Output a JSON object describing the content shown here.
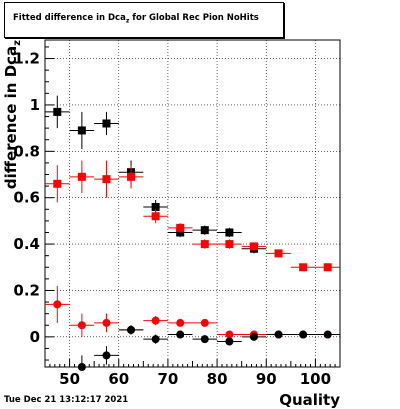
{
  "title": {
    "main": "Fitted difference in Dca",
    "sub": "z",
    "rest": " for Global Rec Pion NoHits"
  },
  "footer": "Tue Dec 21 13:12:17 2021",
  "chart_data": {
    "type": "scatter",
    "title": "Fitted difference in Dcaz for Global Rec Pion NoHits",
    "xlabel": "Quality",
    "ylabel": "difference in Dcaz",
    "xlim": [
      45,
      105
    ],
    "ylim": [
      -0.13,
      1.28
    ],
    "xticks": [
      50,
      60,
      70,
      80,
      90,
      100
    ],
    "yticks": [
      0,
      0.2,
      0.4,
      0.6,
      0.8,
      1,
      1.2
    ],
    "ytick_labels": [
      "0",
      "0.2",
      "0.4",
      "0.6",
      "0.8",
      "1",
      "1.2"
    ],
    "grid": true,
    "series": [
      {
        "marker": "square",
        "color": "#000000",
        "points": [
          {
            "x": 47.5,
            "y": 0.97,
            "ey": 0.07
          },
          {
            "x": 52.5,
            "y": 0.89,
            "ey": 0.08
          },
          {
            "x": 57.5,
            "y": 0.92,
            "ey": 0.05
          },
          {
            "x": 62.5,
            "y": 0.71,
            "ey": 0.05
          },
          {
            "x": 67.5,
            "y": 0.56,
            "ey": 0.03
          },
          {
            "x": 72.5,
            "y": 0.45,
            "ey": 0.02
          },
          {
            "x": 77.5,
            "y": 0.46,
            "ey": 0.02
          },
          {
            "x": 82.5,
            "y": 0.45,
            "ey": 0.02
          },
          {
            "x": 87.5,
            "y": 0.38,
            "ey": 0.02
          }
        ]
      },
      {
        "marker": "square",
        "color": "#ff0000",
        "points": [
          {
            "x": 47.5,
            "y": 0.66,
            "ey": 0.08
          },
          {
            "x": 52.5,
            "y": 0.69,
            "ey": 0.07
          },
          {
            "x": 57.5,
            "y": 0.68,
            "ey": 0.08
          },
          {
            "x": 62.5,
            "y": 0.69,
            "ey": 0.05
          },
          {
            "x": 67.5,
            "y": 0.52,
            "ey": 0.03
          },
          {
            "x": 72.5,
            "y": 0.47,
            "ey": 0.02
          },
          {
            "x": 77.5,
            "y": 0.4,
            "ey": 0.02
          },
          {
            "x": 82.5,
            "y": 0.4,
            "ey": 0.02
          },
          {
            "x": 87.5,
            "y": 0.39,
            "ey": 0.01
          },
          {
            "x": 92.5,
            "y": 0.36,
            "ey": 0.01
          },
          {
            "x": 97.5,
            "y": 0.3,
            "ey": 0.01
          },
          {
            "x": 102.5,
            "y": 0.3,
            "ey": 0.01
          }
        ]
      },
      {
        "marker": "circle",
        "color": "#ff0000",
        "points": [
          {
            "x": 47.5,
            "y": 0.14,
            "ey": 0.08
          },
          {
            "x": 52.5,
            "y": 0.05,
            "ey": 0.05
          },
          {
            "x": 57.5,
            "y": 0.06,
            "ey": 0.04
          },
          {
            "x": 62.5,
            "y": 0.03,
            "ey": 0.02
          },
          {
            "x": 67.5,
            "y": 0.07,
            "ey": 0.02
          },
          {
            "x": 72.5,
            "y": 0.06,
            "ey": 0.01
          },
          {
            "x": 77.5,
            "y": 0.06,
            "ey": 0.01
          },
          {
            "x": 82.5,
            "y": 0.01,
            "ey": 0.01
          },
          {
            "x": 87.5,
            "y": 0.01,
            "ey": 0.01
          },
          {
            "x": 92.5,
            "y": 0.01,
            "ey": 0.01
          },
          {
            "x": 97.5,
            "y": 0.01,
            "ey": 0.01
          },
          {
            "x": 102.5,
            "y": 0.01,
            "ey": 0.01
          }
        ]
      },
      {
        "marker": "circle",
        "color": "#000000",
        "points": [
          {
            "x": 52.5,
            "y": -0.13,
            "ey": 0.05
          },
          {
            "x": 57.5,
            "y": -0.08,
            "ey": 0.04
          },
          {
            "x": 62.5,
            "y": 0.03,
            "ey": 0.02
          },
          {
            "x": 67.5,
            "y": -0.01,
            "ey": 0.02
          },
          {
            "x": 72.5,
            "y": 0.01,
            "ey": 0.01
          },
          {
            "x": 77.5,
            "y": -0.01,
            "ey": 0.01
          },
          {
            "x": 82.5,
            "y": -0.02,
            "ey": 0.01
          },
          {
            "x": 87.5,
            "y": 0.0,
            "ey": 0.01
          },
          {
            "x": 92.5,
            "y": 0.01,
            "ey": 0.01
          },
          {
            "x": 97.5,
            "y": 0.01,
            "ey": 0.01
          },
          {
            "x": 102.5,
            "y": 0.01,
            "ey": 0.01
          }
        ]
      }
    ]
  }
}
